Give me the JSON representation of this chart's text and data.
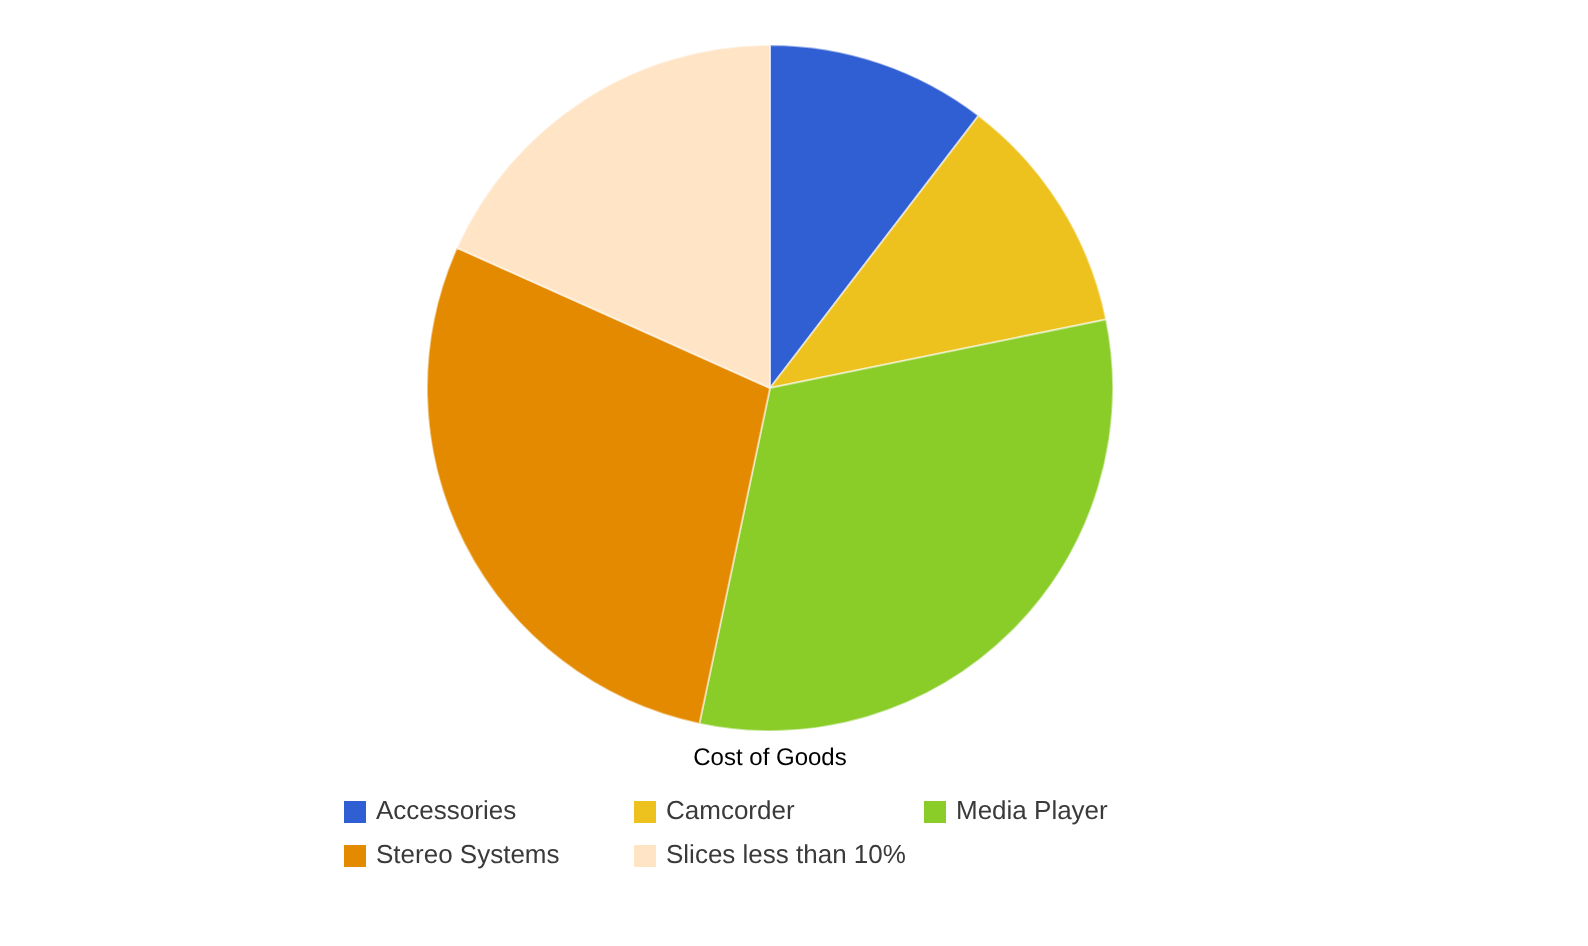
{
  "chart_data": {
    "type": "pie",
    "title": "Cost of Goods",
    "categories": [
      "Accessories",
      "Camcorder",
      "Media Player",
      "Stereo Systems",
      "Slices less than 10%"
    ],
    "values": [
      10.4,
      11.4,
      31.5,
      28.4,
      18.3
    ],
    "colors": [
      "#2f5fd3",
      "#eec21e",
      "#8acc28",
      "#e48a00",
      "#ffe4c6"
    ],
    "legend": "bottom"
  }
}
